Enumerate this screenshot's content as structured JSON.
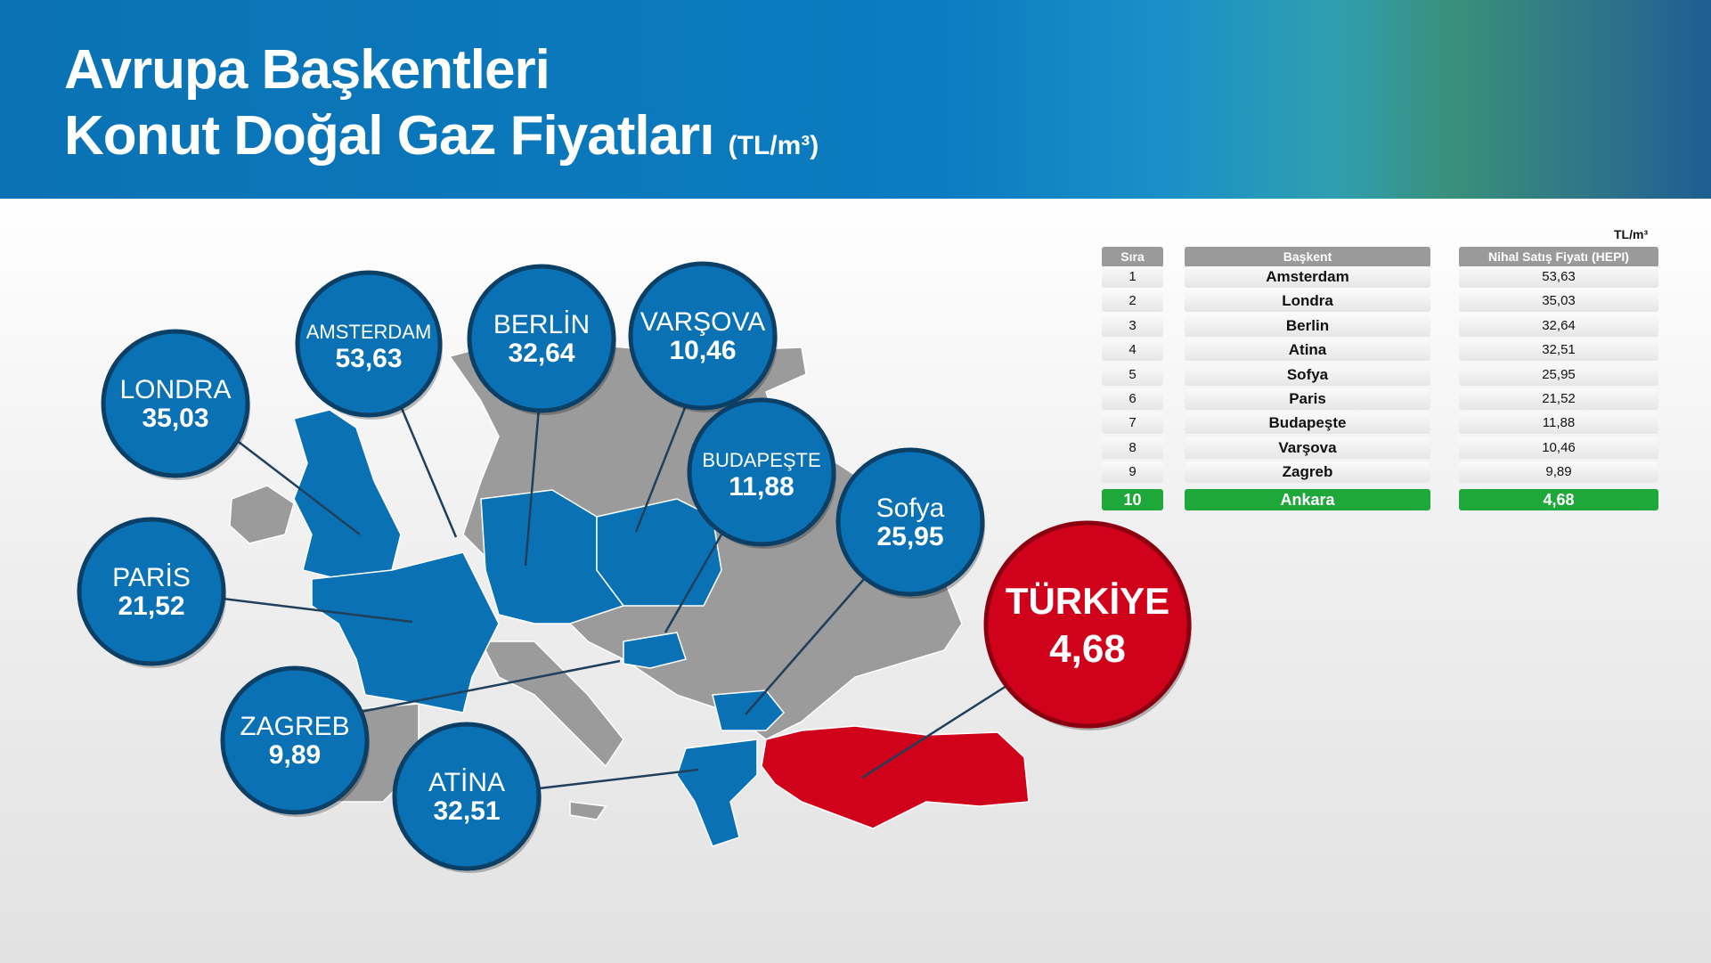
{
  "header": {
    "title_line1": "Avrupa Başkentleri",
    "title_line2": "Konut Doğal Gaz Fiyatları",
    "title_unit": "(TL/m³)"
  },
  "colors": {
    "bubble_blue": "#0a72b4",
    "turkey_red": "#d0021b",
    "highlight_green": "#1ea83a",
    "map_gray": "#9b9b9b"
  },
  "chart_data": {
    "type": "table",
    "unit": "TL/m³",
    "columns": [
      "Sıra",
      "Başkent",
      "Nihal Satış Fiyatı (HEPI)"
    ],
    "rows": [
      {
        "rank": "1",
        "city": "Amsterdam",
        "price": "53,63"
      },
      {
        "rank": "2",
        "city": "Londra",
        "price": "35,03"
      },
      {
        "rank": "3",
        "city": "Berlin",
        "price": "32,64"
      },
      {
        "rank": "4",
        "city": "Atina",
        "price": "32,51"
      },
      {
        "rank": "5",
        "city": "Sofya",
        "price": "25,95"
      },
      {
        "rank": "6",
        "city": "Paris",
        "price": "21,52"
      },
      {
        "rank": "7",
        "city": "Budapeşte",
        "price": "11,88"
      },
      {
        "rank": "8",
        "city": "Varşova",
        "price": "10,46"
      },
      {
        "rank": "9",
        "city": "Zagreb",
        "price": "9,89"
      },
      {
        "rank": "10",
        "city": "Ankara",
        "price": "4,68",
        "highlight": true
      }
    ]
  },
  "map_bubbles": [
    {
      "name": "LONDRA",
      "value": "35,03"
    },
    {
      "name": "AMSTERDAM",
      "value": "53,63"
    },
    {
      "name": "BERLİN",
      "value": "32,64"
    },
    {
      "name": "VARŞOVA",
      "value": "10,46"
    },
    {
      "name": "BUDAPEŞTE",
      "value": "11,88"
    },
    {
      "name": "Sofya",
      "value": "25,95"
    },
    {
      "name": "PARİS",
      "value": "21,52"
    },
    {
      "name": "ZAGREB",
      "value": "9,89"
    },
    {
      "name": "ATİNA",
      "value": "32,51"
    },
    {
      "name": "TÜRKİYE",
      "value": "4,68",
      "highlight": true
    }
  ]
}
